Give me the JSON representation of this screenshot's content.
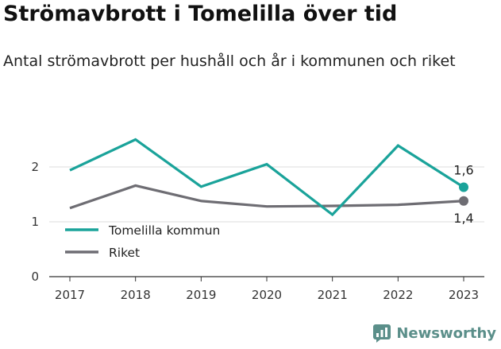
{
  "title": "Strömavbrott i Tomelilla över tid",
  "subtitle": "Antal strömavbrott per hushåll och år i kommunen och riket",
  "brand": "Newsworthy",
  "chart_data": {
    "type": "line",
    "x": [
      2017,
      2018,
      2019,
      2020,
      2021,
      2022,
      2023
    ],
    "ylim": [
      0,
      2.7
    ],
    "y_ticks": [
      0,
      1,
      2
    ],
    "grid": true,
    "legend_placement": "lower-left",
    "series": [
      {
        "name": "Tomelilla kommun",
        "color": "#1aa39a",
        "values": [
          1.94,
          2.5,
          1.64,
          2.05,
          1.13,
          2.39,
          1.63
        ],
        "end_label": "1,6"
      },
      {
        "name": "Riket",
        "color": "#6e6d73",
        "values": [
          1.25,
          1.66,
          1.38,
          1.28,
          1.29,
          1.31,
          1.38
        ],
        "end_label": "1,4"
      }
    ]
  }
}
